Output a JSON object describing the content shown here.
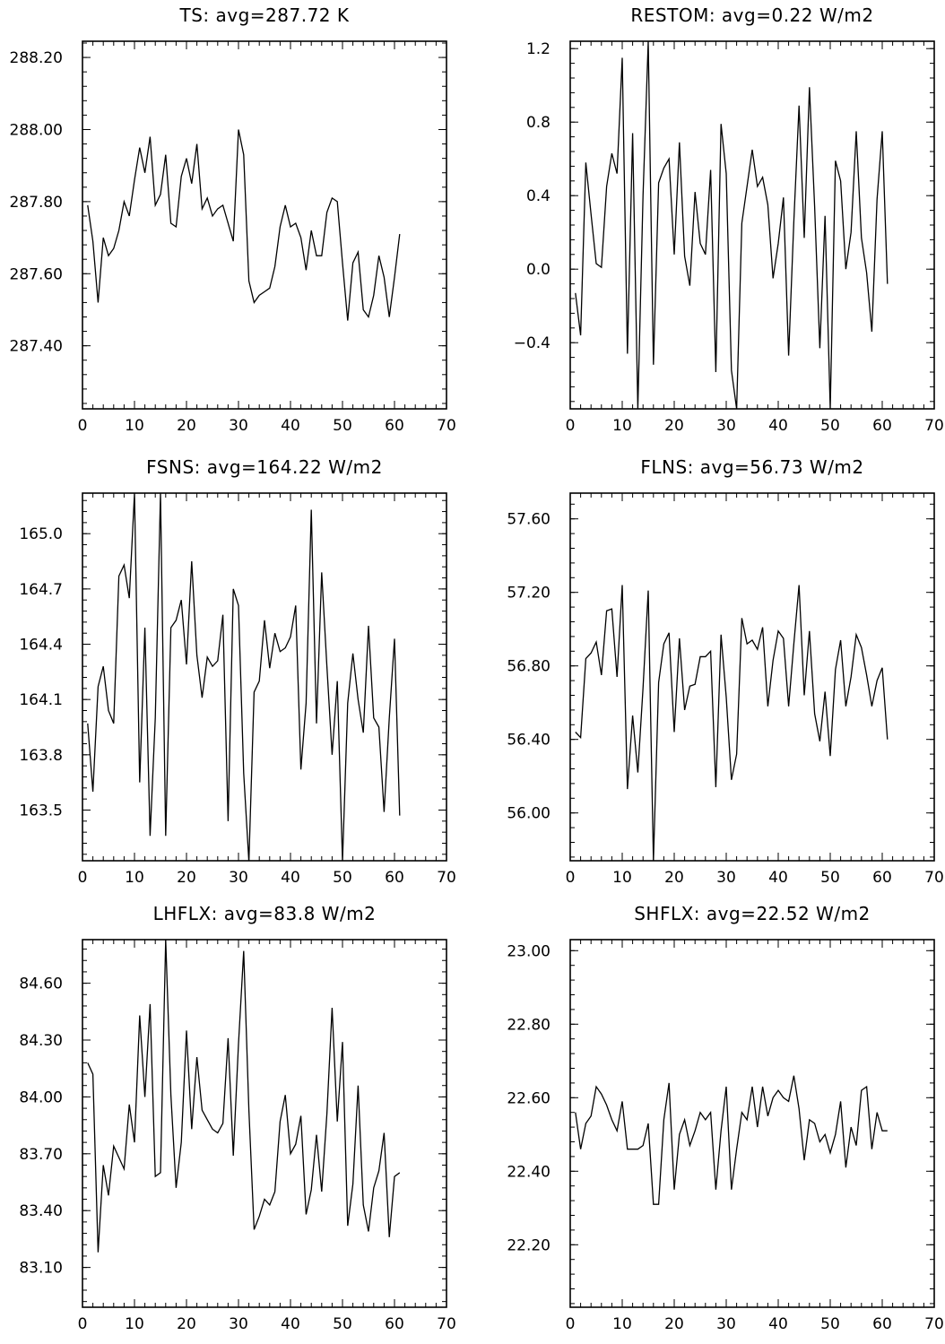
{
  "chart_data": [
    {
      "type": "line",
      "title": "TS: avg=287.72 K",
      "xlim": [
        0,
        70
      ],
      "ylim": [
        287.225,
        288.245
      ],
      "xticks": [
        0,
        10,
        20,
        30,
        40,
        50,
        60,
        70
      ],
      "xtick_labels": [
        "0",
        "10",
        "20",
        "30",
        "40",
        "50",
        "60",
        "70"
      ],
      "yticks": [
        288.2,
        288.0,
        287.8,
        287.6,
        287.4
      ],
      "ytick_labels": [
        "288.20",
        "288.00",
        "287.80",
        "287.60",
        "287.40"
      ],
      "yminor_step": 0.04,
      "grid": false,
      "series": [
        {
          "x": [
            1,
            2,
            3,
            4,
            5,
            6,
            7,
            8,
            9,
            10,
            11,
            12,
            13,
            14,
            15,
            16,
            17,
            18,
            19,
            20,
            21,
            22,
            23,
            24,
            25,
            26,
            27,
            28,
            29,
            30,
            31,
            32,
            33,
            34,
            35,
            36,
            37,
            38,
            39,
            40,
            41,
            42,
            43,
            44,
            45,
            46,
            47,
            48,
            49,
            50,
            51,
            52,
            53,
            54,
            55,
            56,
            57,
            58,
            59,
            60,
            61
          ],
          "values": [
            287.79,
            287.69,
            287.52,
            287.7,
            287.65,
            287.67,
            287.72,
            287.8,
            287.76,
            287.86,
            287.95,
            287.88,
            287.98,
            287.79,
            287.82,
            287.93,
            287.74,
            287.73,
            287.87,
            287.92,
            287.85,
            287.96,
            287.78,
            287.81,
            287.76,
            287.78,
            287.79,
            287.74,
            287.69,
            288.0,
            287.93,
            287.58,
            287.52,
            287.54,
            287.55,
            287.56,
            287.62,
            287.73,
            287.79,
            287.73,
            287.74,
            287.7,
            287.61,
            287.72,
            287.65,
            287.65,
            287.77,
            287.81,
            287.8,
            287.63,
            287.47,
            287.63,
            287.66,
            287.5,
            287.48,
            287.54,
            287.65,
            287.59,
            287.48,
            287.59,
            287.71
          ]
        }
      ]
    },
    {
      "type": "line",
      "title": "RESTOM: avg=0.22 W/m2",
      "xlim": [
        0,
        70
      ],
      "ylim": [
        -0.76,
        1.24
      ],
      "xticks": [
        0,
        10,
        20,
        30,
        40,
        50,
        60,
        70
      ],
      "xtick_labels": [
        "0",
        "10",
        "20",
        "30",
        "40",
        "50",
        "60",
        "70"
      ],
      "yticks": [
        1.2,
        0.8,
        0.4,
        0.0,
        -0.4
      ],
      "ytick_labels": [
        "1.2",
        "0.8",
        "0.4",
        "0.0",
        "−0.4"
      ],
      "yminor_step": 0.08,
      "grid": false,
      "series": [
        {
          "x": [
            1,
            2,
            3,
            4,
            5,
            6,
            7,
            8,
            9,
            10,
            11,
            12,
            13,
            14,
            15,
            16,
            17,
            18,
            19,
            20,
            21,
            22,
            23,
            24,
            25,
            26,
            27,
            28,
            29,
            30,
            31,
            32,
            33,
            34,
            35,
            36,
            37,
            38,
            39,
            40,
            41,
            42,
            43,
            44,
            45,
            46,
            47,
            48,
            49,
            50,
            51,
            52,
            53,
            54,
            55,
            56,
            57,
            58,
            59,
            60,
            61
          ],
          "values": [
            -0.13,
            -0.36,
            0.58,
            0.3,
            0.03,
            0.01,
            0.45,
            0.63,
            0.52,
            1.15,
            -0.46,
            0.74,
            -0.76,
            0.4,
            1.24,
            -0.52,
            0.47,
            0.55,
            0.6,
            0.08,
            0.69,
            0.07,
            -0.09,
            0.42,
            0.14,
            0.08,
            0.54,
            -0.56,
            0.79,
            0.52,
            -0.55,
            -0.76,
            0.25,
            0.45,
            0.65,
            0.45,
            0.5,
            0.35,
            -0.05,
            0.14,
            0.39,
            -0.47,
            0.26,
            0.89,
            0.17,
            0.99,
            0.34,
            -0.43,
            0.29,
            -0.76,
            0.59,
            0.48,
            0.0,
            0.2,
            0.75,
            0.17,
            -0.02,
            -0.34,
            0.38,
            0.75,
            -0.08
          ]
        }
      ]
    },
    {
      "type": "line",
      "title": "FSNS: avg=164.22 W/m2",
      "xlim": [
        0,
        70
      ],
      "ylim": [
        163.225,
        165.22
      ],
      "xticks": [
        0,
        10,
        20,
        30,
        40,
        50,
        60,
        70
      ],
      "xtick_labels": [
        "0",
        "10",
        "20",
        "30",
        "40",
        "50",
        "60",
        "70"
      ],
      "yticks": [
        165.0,
        164.7,
        164.4,
        164.1,
        163.8,
        163.5
      ],
      "ytick_labels": [
        "165.0",
        "164.7",
        "164.4",
        "164.1",
        "163.8",
        "163.5"
      ],
      "yminor_step": 0.06,
      "grid": false,
      "series": [
        {
          "x": [
            1,
            2,
            3,
            4,
            5,
            6,
            7,
            8,
            9,
            10,
            11,
            12,
            13,
            14,
            15,
            16,
            17,
            18,
            19,
            20,
            21,
            22,
            23,
            24,
            25,
            26,
            27,
            28,
            29,
            30,
            31,
            32,
            33,
            34,
            35,
            36,
            37,
            38,
            39,
            40,
            41,
            42,
            43,
            44,
            45,
            46,
            47,
            48,
            49,
            50,
            51,
            52,
            53,
            54,
            55,
            56,
            57,
            58,
            59,
            60,
            61
          ],
          "values": [
            163.97,
            163.6,
            164.17,
            164.28,
            164.04,
            163.97,
            164.77,
            164.83,
            164.65,
            165.22,
            163.65,
            164.49,
            163.36,
            164.0,
            165.22,
            163.36,
            164.49,
            164.53,
            164.64,
            164.29,
            164.85,
            164.34,
            164.11,
            164.33,
            164.28,
            164.31,
            164.56,
            163.44,
            164.7,
            164.61,
            163.7,
            163.22,
            164.14,
            164.2,
            164.53,
            164.27,
            164.46,
            164.36,
            164.38,
            164.44,
            164.61,
            163.72,
            164.08,
            165.13,
            163.97,
            164.79,
            164.28,
            163.8,
            164.2,
            163.22,
            164.08,
            164.35,
            164.1,
            163.92,
            164.5,
            164.0,
            163.95,
            163.49,
            164.0,
            164.43,
            163.47
          ]
        }
      ]
    },
    {
      "type": "line",
      "title": "FLNS: avg=56.73 W/m2",
      "xlim": [
        0,
        70
      ],
      "ylim": [
        55.74,
        57.74
      ],
      "xticks": [
        0,
        10,
        20,
        30,
        40,
        50,
        60,
        70
      ],
      "xtick_labels": [
        "0",
        "10",
        "20",
        "30",
        "40",
        "50",
        "60",
        "70"
      ],
      "yticks": [
        57.6,
        57.2,
        56.8,
        56.4,
        56.0
      ],
      "ytick_labels": [
        "57.60",
        "57.20",
        "56.80",
        "56.40",
        "56.00"
      ],
      "yminor_step": 0.08,
      "grid": false,
      "series": [
        {
          "x": [
            1,
            2,
            3,
            4,
            5,
            6,
            7,
            8,
            9,
            10,
            11,
            12,
            13,
            14,
            15,
            16,
            17,
            18,
            19,
            20,
            21,
            22,
            23,
            24,
            25,
            26,
            27,
            28,
            29,
            30,
            31,
            32,
            33,
            34,
            35,
            36,
            37,
            38,
            39,
            40,
            41,
            42,
            43,
            44,
            45,
            46,
            47,
            48,
            49,
            50,
            51,
            52,
            53,
            54,
            55,
            56,
            57,
            58,
            59,
            60,
            61
          ],
          "values": [
            56.44,
            56.41,
            56.84,
            56.87,
            56.93,
            56.75,
            57.1,
            57.11,
            56.74,
            57.24,
            56.13,
            56.53,
            56.22,
            56.68,
            57.21,
            55.74,
            56.71,
            56.92,
            56.98,
            56.44,
            56.95,
            56.56,
            56.69,
            56.7,
            56.85,
            56.85,
            56.88,
            56.14,
            56.97,
            56.63,
            56.18,
            56.32,
            57.06,
            56.92,
            56.94,
            56.89,
            57.01,
            56.58,
            56.83,
            56.99,
            56.95,
            56.58,
            56.92,
            57.24,
            56.64,
            56.99,
            56.54,
            56.39,
            56.66,
            56.31,
            56.78,
            56.94,
            56.58,
            56.74,
            56.97,
            56.9,
            56.75,
            56.58,
            56.72,
            56.79,
            56.4
          ]
        }
      ]
    },
    {
      "type": "line",
      "title": "LHFLX: avg=83.8 W/m2",
      "xlim": [
        0,
        70
      ],
      "ylim": [
        82.89,
        84.83
      ],
      "xticks": [
        0,
        10,
        20,
        30,
        40,
        50,
        60,
        70
      ],
      "xtick_labels": [
        "0",
        "10",
        "20",
        "30",
        "40",
        "50",
        "60",
        "70"
      ],
      "yticks": [
        84.6,
        84.3,
        84.0,
        83.7,
        83.4,
        83.1
      ],
      "ytick_labels": [
        "84.60",
        "84.30",
        "84.00",
        "83.70",
        "83.40",
        "83.10"
      ],
      "yminor_step": 0.06,
      "grid": false,
      "series": [
        {
          "x": [
            1,
            2,
            3,
            4,
            5,
            6,
            7,
            8,
            9,
            10,
            11,
            12,
            13,
            14,
            15,
            16,
            17,
            18,
            19,
            20,
            21,
            22,
            23,
            24,
            25,
            26,
            27,
            28,
            29,
            30,
            31,
            32,
            33,
            34,
            35,
            36,
            37,
            38,
            39,
            40,
            41,
            42,
            43,
            44,
            45,
            46,
            47,
            48,
            49,
            50,
            51,
            52,
            53,
            54,
            55,
            56,
            57,
            58,
            59,
            60,
            61
          ],
          "values": [
            84.18,
            84.12,
            83.18,
            83.64,
            83.48,
            83.74,
            83.68,
            83.62,
            83.96,
            83.76,
            84.43,
            84.0,
            84.49,
            83.58,
            83.6,
            84.83,
            84.01,
            83.52,
            83.76,
            84.35,
            83.83,
            84.21,
            83.93,
            83.88,
            83.83,
            83.81,
            83.86,
            84.31,
            83.69,
            84.28,
            84.77,
            83.93,
            83.3,
            83.37,
            83.46,
            83.43,
            83.5,
            83.87,
            84.01,
            83.7,
            83.75,
            83.9,
            83.38,
            83.51,
            83.8,
            83.5,
            83.91,
            84.47,
            83.87,
            84.29,
            83.32,
            83.54,
            84.06,
            83.43,
            83.29,
            83.52,
            83.61,
            83.81,
            83.26,
            83.58,
            83.6
          ]
        }
      ]
    },
    {
      "type": "line",
      "title": "SHFLX: avg=22.52 W/m2",
      "xlim": [
        0,
        70
      ],
      "ylim": [
        22.03,
        23.03
      ],
      "xticks": [
        0,
        10,
        20,
        30,
        40,
        50,
        60,
        70
      ],
      "xtick_labels": [
        "0",
        "10",
        "20",
        "30",
        "40",
        "50",
        "60",
        "70"
      ],
      "yticks": [
        23.0,
        22.8,
        22.6,
        22.4,
        22.2
      ],
      "ytick_labels": [
        "23.00",
        "22.80",
        "22.60",
        "22.40",
        "22.20"
      ],
      "yminor_step": 0.04,
      "grid": false,
      "series": [
        {
          "x": [
            1,
            2,
            3,
            4,
            5,
            6,
            7,
            8,
            9,
            10,
            11,
            12,
            13,
            14,
            15,
            16,
            17,
            18,
            19,
            20,
            21,
            22,
            23,
            24,
            25,
            26,
            27,
            28,
            29,
            30,
            31,
            32,
            33,
            34,
            35,
            36,
            37,
            38,
            39,
            40,
            41,
            42,
            43,
            44,
            45,
            46,
            47,
            48,
            49,
            50,
            51,
            52,
            53,
            54,
            55,
            56,
            57,
            58,
            59,
            60,
            61
          ],
          "values": [
            22.56,
            22.46,
            22.53,
            22.55,
            22.63,
            22.61,
            22.58,
            22.54,
            22.51,
            22.59,
            22.46,
            22.46,
            22.46,
            22.47,
            22.53,
            22.31,
            22.31,
            22.54,
            22.64,
            22.35,
            22.5,
            22.54,
            22.47,
            22.51,
            22.56,
            22.54,
            22.56,
            22.35,
            22.51,
            22.63,
            22.35,
            22.46,
            22.56,
            22.54,
            22.63,
            22.52,
            22.63,
            22.55,
            22.6,
            22.62,
            22.6,
            22.59,
            22.66,
            22.57,
            22.43,
            22.54,
            22.53,
            22.48,
            22.5,
            22.45,
            22.5,
            22.59,
            22.41,
            22.52,
            22.47,
            22.62,
            22.63,
            22.46,
            22.56,
            22.51,
            22.51
          ]
        }
      ]
    }
  ]
}
